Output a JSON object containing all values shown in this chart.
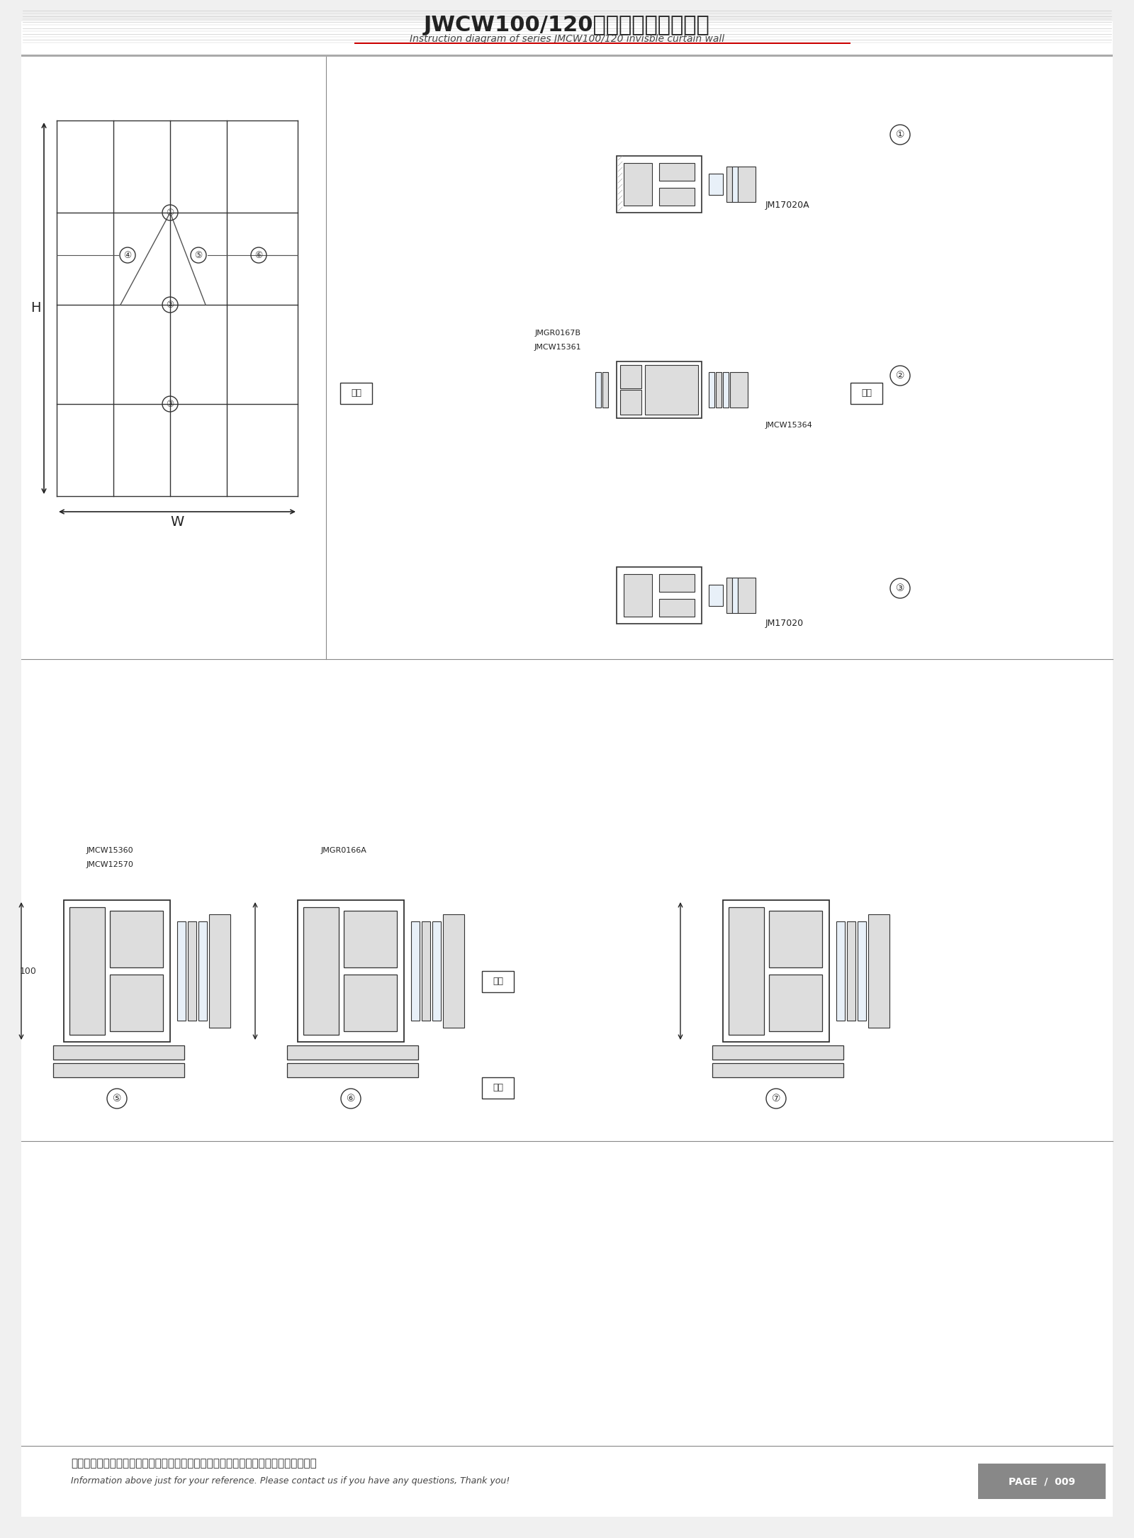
{
  "title_cn": "JWCW100/120系列隐框幕墙结构图",
  "title_en": "Instruction diagram of series JMCW100/120 invisble curtain wall",
  "footer_cn": "图中所示型材截面、装配、编号、尺寸及重量仅供参考。如有疑问，请向本公司查询。",
  "footer_en": "Information above just for your reference. Please contact us if you have any questions, Thank you!",
  "page_label": "PAGE  /  009",
  "bg_color": "#f0f0f0",
  "paper_color": "#ffffff",
  "labels": {
    "indoor_cn": "室内",
    "outdoor_cn": "室外",
    "H_label": "H",
    "W_label": "W",
    "dim_100": "100"
  },
  "part_labels": {
    "JMCW15360": "JMCW15360",
    "JMCW12570": "JMCW12570",
    "JMGR0166A": "JMGR0166A",
    "JMGR0167B": "JMGR0167B",
    "JMCW15361": "JMCW15361",
    "JMCW15364": "JMCW15364",
    "JM17020A": "JM17020A",
    "JM17020": "JM17020"
  }
}
